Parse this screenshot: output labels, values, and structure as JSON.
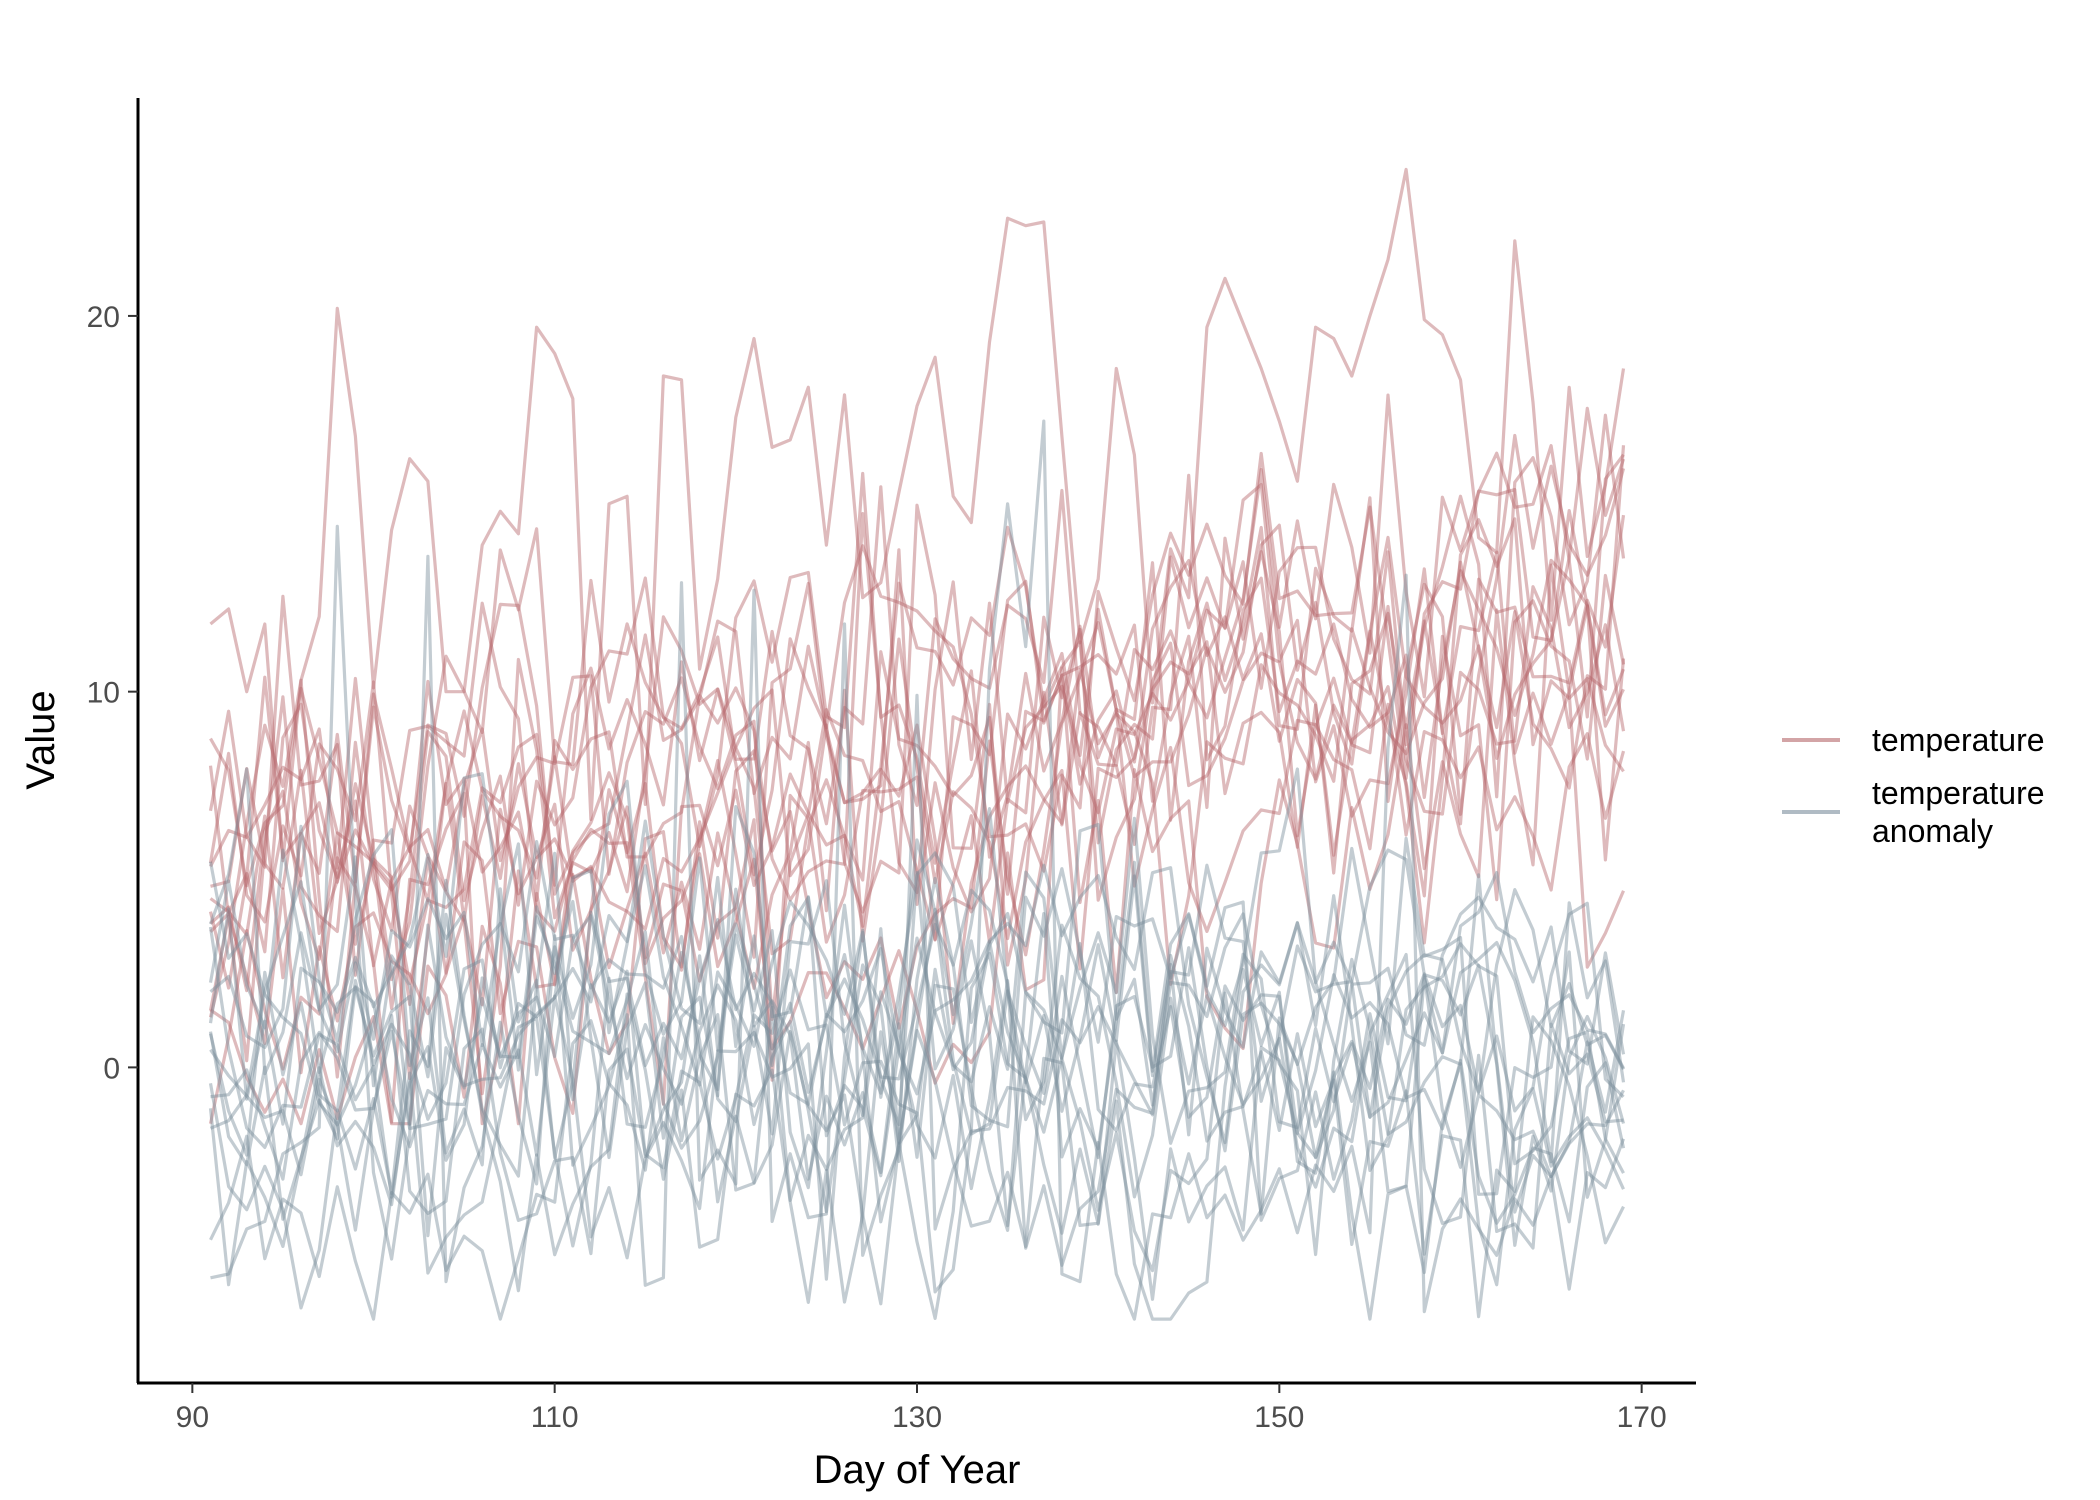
{
  "chart_data": {
    "type": "line",
    "xlabel": "Day of Year",
    "ylabel": "Value",
    "xlim": [
      87,
      173
    ],
    "ylim": [
      -8.4,
      25.8
    ],
    "x_ticks": [
      90,
      110,
      130,
      150,
      170
    ],
    "y_ticks": [
      0,
      10,
      20
    ],
    "grid": false,
    "legend_position": "right",
    "x": [
      91,
      92,
      93,
      94,
      95,
      96,
      97,
      98,
      99,
      100,
      101,
      102,
      103,
      104,
      105,
      106,
      107,
      108,
      109,
      110,
      111,
      112,
      113,
      114,
      115,
      116,
      117,
      118,
      119,
      120,
      121,
      122,
      123,
      124,
      125,
      126,
      127,
      128,
      129,
      130,
      131,
      132,
      133,
      134,
      135,
      136,
      137,
      138,
      139,
      140,
      141,
      142,
      143,
      144,
      145,
      146,
      147,
      148,
      149,
      150,
      151,
      152,
      153,
      154,
      155,
      156,
      157,
      158,
      159,
      160,
      161,
      162,
      163,
      164,
      165,
      166,
      167,
      168,
      169
    ],
    "series": [
      {
        "name": "temperature",
        "color": "#b5676a",
        "opacity": 0.45,
        "count": 15,
        "approx_mean": 8.5,
        "approx_range": [
          -1.5,
          24
        ],
        "representative_values": [
          11.8,
          12.2,
          10.0,
          11.8,
          5.5,
          10.3,
          12.0,
          20.2,
          16.8,
          10.1,
          14.3,
          16.2,
          15.6,
          10.0,
          10.0,
          13.9,
          14.8,
          14.2,
          19.7,
          19.0,
          17.8,
          6.6,
          15.0,
          15.2,
          7.0,
          18.4,
          18.3,
          10.6,
          13.0,
          17.3,
          19.4,
          16.5,
          16.7,
          18.1,
          13.9,
          17.9,
          12.5,
          12.9,
          15.3,
          17.6,
          18.9,
          15.2,
          14.5,
          19.3,
          22.6,
          22.4,
          22.5,
          16.8,
          11.3,
          13.0,
          18.6,
          16.3,
          9.7,
          13.8,
          12.5,
          19.7,
          21.0,
          19.8,
          18.6,
          17.2,
          15.6,
          19.7,
          19.4,
          18.4,
          20.0,
          21.5,
          23.9,
          19.9,
          19.5,
          18.3,
          14.1,
          13.7,
          22.0,
          17.7,
          11.9,
          18.1,
          13.6,
          15.5,
          18.6
        ]
      },
      {
        "name": "temperature\n anomaly",
        "color": "#7b8d9c",
        "opacity": 0.45,
        "count": 15,
        "approx_mean": 1.0,
        "approx_range": [
          -6.7,
          17.2
        ],
        "representative_values": [
          -5.6,
          -5.5,
          -4.3,
          -4.1,
          -2.3,
          -2.0,
          -1.6,
          14.4,
          4.5,
          -2.8,
          -5.1,
          -1.8,
          13.6,
          -5.7,
          -3.2,
          -2.1,
          1.2,
          -1.3,
          -3.1,
          3.5,
          -2.6,
          -1.6,
          -0.5,
          1.4,
          -5.8,
          -5.6,
          12.9,
          -3.0,
          -2.2,
          -3.1,
          12.7,
          -4.1,
          -2.3,
          -4.0,
          -3.9,
          11.8,
          -5.0,
          -3.4,
          -2.2,
          9.9,
          -4.3,
          -2.7,
          -1.7,
          10.6,
          15.0,
          11.2,
          17.2,
          -5.5,
          -5.7,
          -2.0,
          -5.5,
          -6.7,
          -3.9,
          -4.0,
          -2.3,
          -4.0,
          -3.4,
          -4.6,
          -3.8,
          -2.7,
          -4.4,
          -2.6,
          -3.3,
          -2.1,
          -4.4,
          8.5,
          13.1,
          -6.5,
          -4.3,
          -3.5,
          -4.3,
          -5.0,
          -3.5,
          -4.2,
          -2.9,
          -5.9,
          -2.8,
          -3.2,
          -1.9
        ]
      }
    ],
    "legend": [
      "temperature",
      "temperature\n anomaly"
    ]
  }
}
